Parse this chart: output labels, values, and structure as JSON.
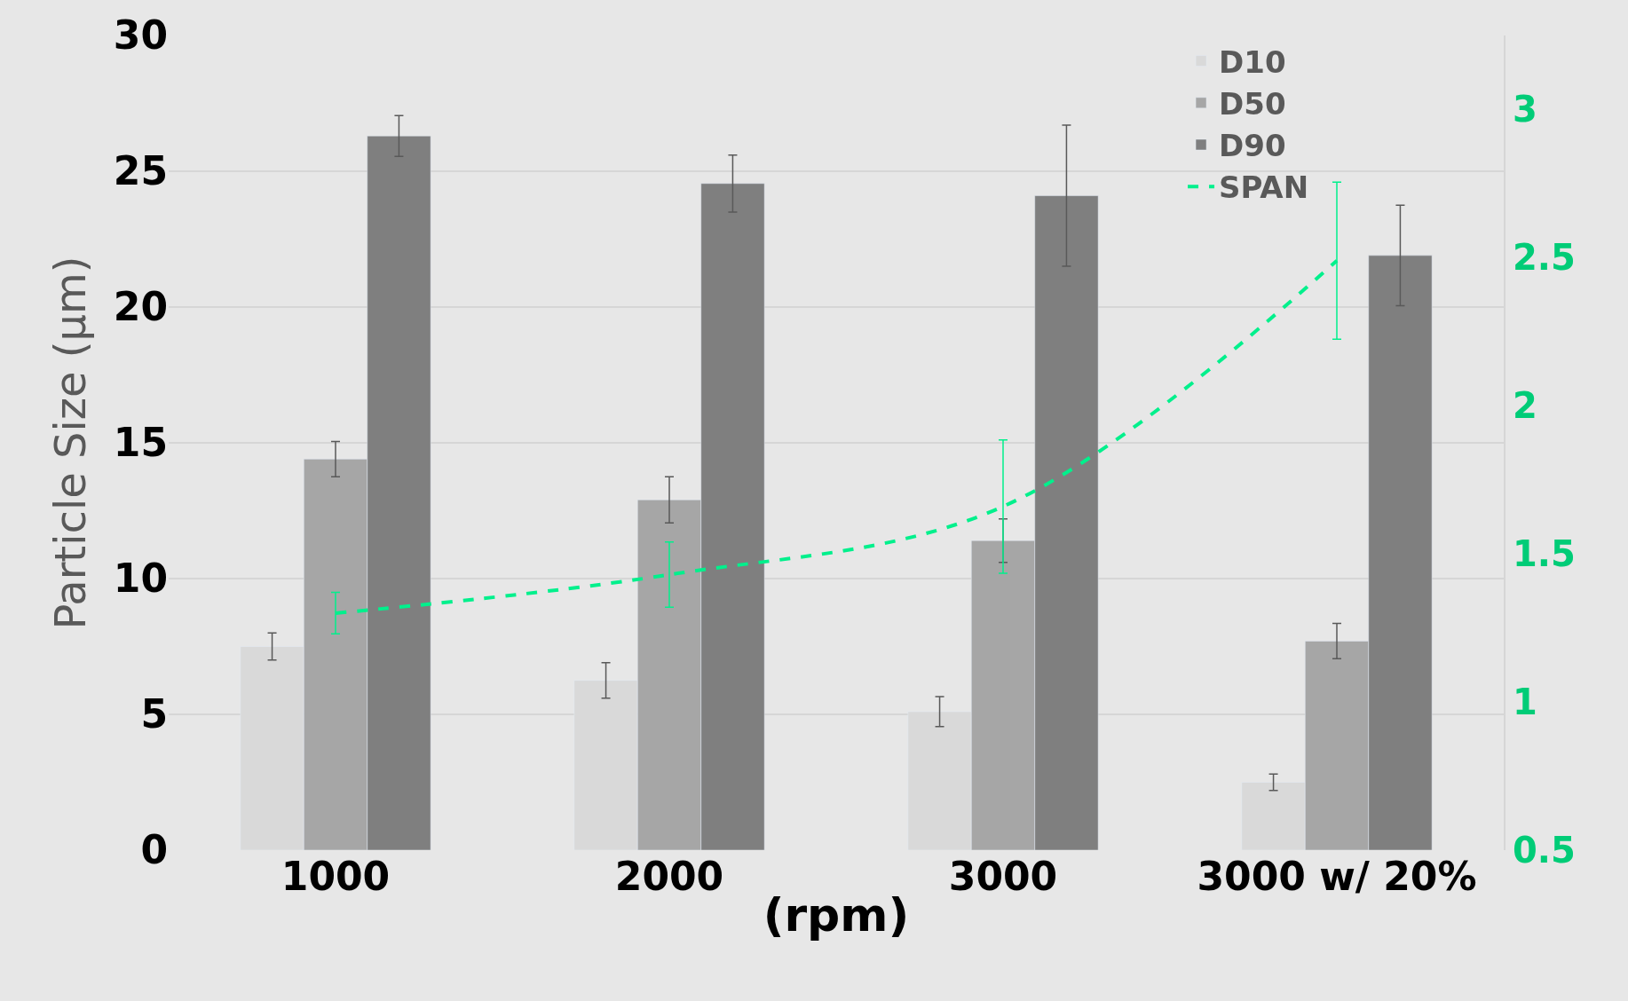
{
  "chart_data": {
    "type": "bar",
    "ylabel": "Particle Size (µm)",
    "xlabel": "(rpm)",
    "categories": [
      "1000",
      "2000",
      "3000",
      "3000 w/ 20%"
    ],
    "series": [
      {
        "name": "D10",
        "color": "#d9d9d9",
        "values": [
          7.5,
          6.25,
          5.1,
          2.5
        ],
        "errors": [
          0.5,
          0.65,
          0.55,
          0.3
        ]
      },
      {
        "name": "D50",
        "color": "#a6a6a6",
        "values": [
          14.4,
          12.9,
          11.4,
          7.7
        ],
        "errors": [
          0.65,
          0.85,
          0.8,
          0.65
        ]
      },
      {
        "name": "D90",
        "color": "#7f7f7f",
        "values": [
          26.3,
          24.55,
          24.1,
          21.9
        ],
        "errors": [
          0.75,
          1.05,
          2.6,
          1.85
        ]
      },
      {
        "name": "SPAN",
        "color": "#00f08c",
        "type": "line",
        "axis": "y2",
        "line_style": "dashed",
        "marker": "none",
        "values": [
          1.3,
          1.43,
          1.66,
          2.49
        ],
        "errors": [
          0.07,
          0.11,
          0.225,
          0.265
        ]
      }
    ],
    "ylim": [
      0,
      30
    ],
    "yticks": [
      0,
      5,
      10,
      15,
      20,
      25,
      30
    ],
    "y2lim": [
      0.5,
      3.25
    ],
    "y2ticks": [
      0.5,
      1,
      1.5,
      2,
      2.5,
      3
    ],
    "grid": "y",
    "legend": "top right"
  }
}
